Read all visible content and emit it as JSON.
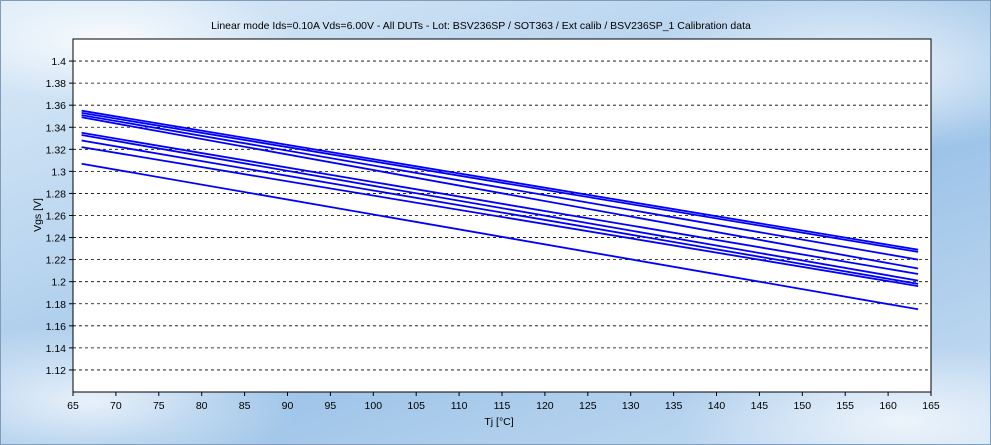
{
  "chart_data": {
    "type": "line",
    "title": "Linear mode Ids=0.10A Vds=6.00V  - All DUTs - Lot: BSV236SP / SOT363 / Ext calib / BSV236SP_1  Calibration data",
    "xlabel": "Tj [°C]",
    "ylabel": "Vgs [V]",
    "xlim": [
      65,
      165
    ],
    "ylim": [
      1.1,
      1.42
    ],
    "xticks": [
      "65",
      "70",
      "75",
      "80",
      "85",
      "90",
      "95",
      "100",
      "105",
      "110",
      "115",
      "120",
      "125",
      "130",
      "135",
      "140",
      "145",
      "150",
      "155",
      "160",
      "165"
    ],
    "yticks": [
      "1.12",
      "1.14",
      "1.16",
      "1.18",
      "1.2",
      "1.22",
      "1.24",
      "1.26",
      "1.28",
      "1.3",
      "1.32",
      "1.34",
      "1.36",
      "1.38",
      "1.4"
    ],
    "grid": "horizontal dashed",
    "line_color": "#0000ff",
    "series": [
      {
        "x": [
          66,
          163.5
        ],
        "y": [
          1.355,
          1.229
        ]
      },
      {
        "x": [
          66,
          163.5
        ],
        "y": [
          1.353,
          1.227
        ]
      },
      {
        "x": [
          66,
          163.5
        ],
        "y": [
          1.351,
          1.22
        ]
      },
      {
        "x": [
          66,
          163.5
        ],
        "y": [
          1.349,
          1.212
        ]
      },
      {
        "x": [
          66,
          163.5
        ],
        "y": [
          1.335,
          1.207
        ]
      },
      {
        "x": [
          66,
          163.5
        ],
        "y": [
          1.333,
          1.201
        ]
      },
      {
        "x": [
          66,
          163.5
        ],
        "y": [
          1.328,
          1.198
        ]
      },
      {
        "x": [
          66,
          163.5
        ],
        "y": [
          1.322,
          1.196
        ]
      },
      {
        "x": [
          66,
          163.5
        ],
        "y": [
          1.307,
          1.175
        ]
      }
    ]
  }
}
